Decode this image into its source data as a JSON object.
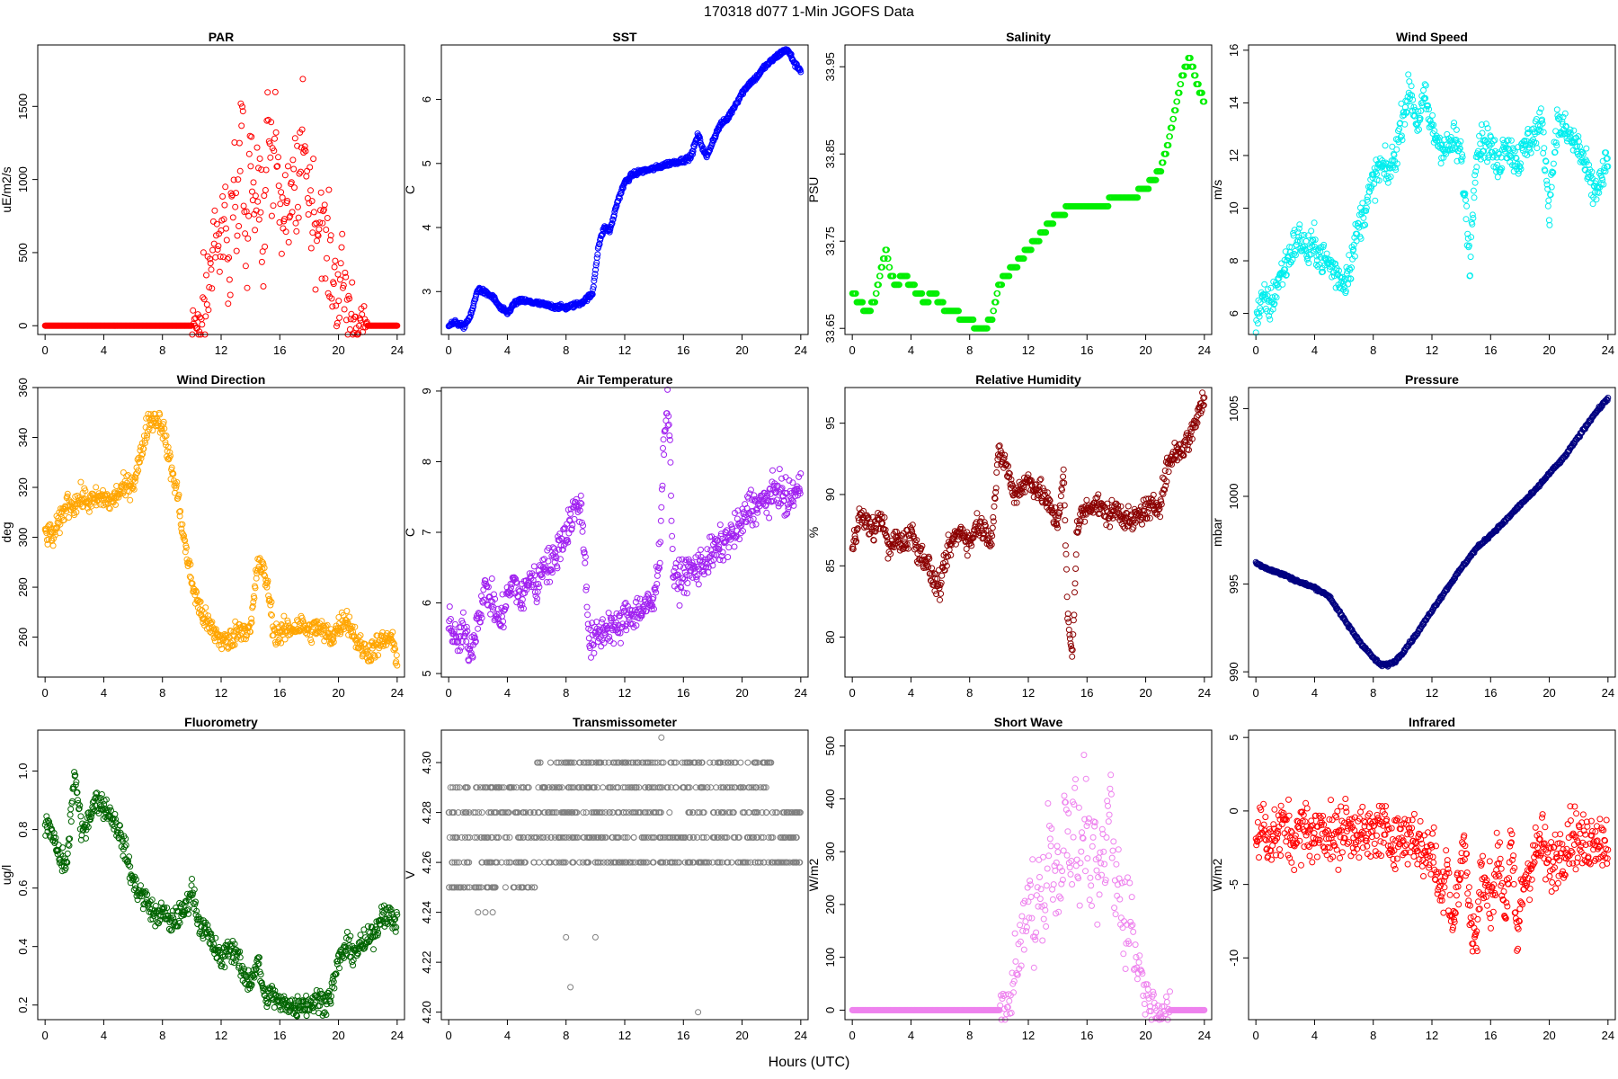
{
  "figure": {
    "title": "170318   d077   1-Min  JGOFS Data",
    "xlabel": "Hours (UTC)"
  },
  "chart_data": [
    {
      "type": "scatter",
      "title": "PAR",
      "ylabel": "uE/m2/s",
      "color": "#ff0000",
      "xlim": [
        -0.5,
        24.5
      ],
      "ylim": [
        -60,
        1920
      ],
      "yticks": [
        0,
        500,
        1000,
        1500
      ],
      "ytick_labels": [
        "0",
        "500",
        "1000",
        "1500"
      ],
      "x": [
        0,
        2,
        4,
        6,
        8,
        9,
        10,
        10.5,
        11,
        11.3,
        11.6,
        11.9,
        12.2,
        12.5,
        12.8,
        13.1,
        13.4,
        13.7,
        14,
        14.3,
        14.6,
        14.9,
        15.2,
        15.5,
        15.8,
        16.1,
        16.4,
        16.7,
        17,
        17.3,
        17.6,
        17.9,
        18.2,
        18.5,
        18.8,
        19.1,
        19.4,
        19.7,
        20,
        20.3,
        20.6,
        20.9,
        21.2,
        21.5,
        22,
        23,
        24
      ],
      "y": [
        0,
        0,
        0,
        0,
        0,
        0,
        2,
        20,
        90,
        380,
        700,
        420,
        850,
        340,
        1020,
        620,
        1500,
        420,
        1300,
        760,
        980,
        560,
        1700,
        860,
        1320,
        720,
        820,
        650,
        1080,
        760,
        1500,
        920,
        880,
        640,
        820,
        520,
        460,
        300,
        260,
        320,
        120,
        60,
        25,
        10,
        2,
        0,
        0
      ]
    },
    {
      "type": "scatter",
      "title": "SST",
      "ylabel": "C",
      "color": "#0000ff",
      "xlim": [
        -0.5,
        24.5
      ],
      "ylim": [
        2.33,
        6.85
      ],
      "yticks": [
        3,
        4,
        5,
        6
      ],
      "ytick_labels": [
        "3",
        "4",
        "5",
        "6"
      ],
      "x": [
        0,
        0.5,
        1,
        1.5,
        2,
        2.5,
        3,
        3.5,
        4,
        4.5,
        5,
        6,
        7,
        8,
        9,
        9.8,
        10.2,
        10.6,
        11,
        11.5,
        12,
        12.5,
        13,
        14,
        15,
        16,
        16.5,
        17,
        17.3,
        17.6,
        18,
        18.5,
        19,
        19.5,
        20,
        20.5,
        21,
        21.5,
        22,
        22.5,
        23,
        23.3,
        23.6,
        24
      ],
      "y": [
        2.48,
        2.52,
        2.45,
        2.62,
        3.05,
        2.98,
        2.92,
        2.75,
        2.66,
        2.82,
        2.86,
        2.82,
        2.77,
        2.75,
        2.82,
        2.96,
        3.7,
        4.0,
        3.95,
        4.4,
        4.7,
        4.82,
        4.87,
        4.92,
        5.0,
        5.05,
        5.1,
        5.45,
        5.25,
        5.1,
        5.35,
        5.6,
        5.7,
        5.9,
        6.1,
        6.25,
        6.35,
        6.5,
        6.6,
        6.7,
        6.78,
        6.7,
        6.55,
        6.45
      ]
    },
    {
      "type": "scatter",
      "title": "Salinity",
      "ylabel": "PSU",
      "color": "#00ee00",
      "xlim": [
        -0.5,
        24.5
      ],
      "ylim": [
        33.643,
        33.975
      ],
      "yticks": [
        33.65,
        33.75,
        33.85,
        33.95
      ],
      "ytick_labels": [
        "33.65",
        "33.75",
        "33.85",
        "33.95"
      ],
      "x": [
        0,
        0.5,
        1,
        1.5,
        2,
        2.3,
        2.6,
        3,
        3.5,
        4,
        4.5,
        5,
        5.5,
        6,
        6.5,
        7,
        7.5,
        8,
        8.5,
        9,
        9.5,
        10,
        10.5,
        11,
        11.5,
        12,
        12.5,
        13,
        13.5,
        14,
        15,
        16,
        17,
        18,
        19,
        20,
        20.5,
        21,
        21.5,
        22,
        22.5,
        23,
        23.5,
        24
      ],
      "y": [
        33.69,
        33.68,
        33.67,
        33.68,
        33.72,
        33.74,
        33.71,
        33.7,
        33.71,
        33.7,
        33.69,
        33.68,
        33.69,
        33.68,
        33.67,
        33.67,
        33.66,
        33.66,
        33.65,
        33.65,
        33.66,
        33.7,
        33.71,
        33.72,
        33.73,
        33.74,
        33.75,
        33.76,
        33.77,
        33.78,
        33.79,
        33.79,
        33.79,
        33.8,
        33.8,
        33.81,
        33.82,
        33.83,
        33.86,
        33.9,
        33.94,
        33.96,
        33.93,
        33.91
      ]
    },
    {
      "type": "scatter",
      "title": "Wind Speed",
      "ylabel": "m/s",
      "color": "#00eeee",
      "xlim": [
        -0.5,
        24.5
      ],
      "ylim": [
        5.2,
        16.2
      ],
      "yticks": [
        6,
        8,
        10,
        12,
        14,
        16
      ],
      "ytick_labels": [
        "6",
        "8",
        "10",
        "12",
        "14",
        "16"
      ],
      "x": [
        0,
        0.5,
        1,
        1.5,
        2,
        2.5,
        3,
        3.5,
        4,
        4.5,
        5,
        5.5,
        6,
        6.5,
        7,
        7.5,
        8,
        8.5,
        9,
        9.5,
        10,
        10.5,
        11,
        11.5,
        12,
        12.5,
        13,
        13.5,
        14,
        14.3,
        14.6,
        15,
        15.5,
        16,
        16.5,
        17,
        17.5,
        18,
        18.5,
        19,
        19.5,
        20,
        20.5,
        21,
        21.5,
        22,
        22.5,
        23,
        23.5,
        24
      ],
      "y": [
        5.8,
        6.5,
        6.3,
        7.2,
        7.8,
        8.5,
        8.9,
        8.3,
        8.6,
        8.1,
        7.9,
        7.5,
        7.2,
        8.0,
        9.3,
        10.1,
        11.0,
        11.6,
        11.3,
        12.0,
        13.5,
        14.5,
        13.2,
        14.2,
        13.0,
        12.5,
        12.2,
        12.6,
        12.0,
        10.0,
        7.9,
        12.2,
        12.6,
        12.4,
        11.5,
        12.6,
        12.0,
        11.8,
        12.5,
        12.8,
        13.2,
        10.0,
        13.2,
        13.0,
        12.6,
        12.3,
        11.5,
        10.6,
        11.0,
        11.8
      ]
    },
    {
      "type": "scatter",
      "title": "Wind Direction",
      "ylabel": "deg",
      "color": "#ffa500",
      "xlim": [
        -0.5,
        24.5
      ],
      "ylim": [
        244,
        360
      ],
      "yticks": [
        260,
        280,
        300,
        320,
        340,
        360
      ],
      "ytick_labels": [
        "260",
        "280",
        "300",
        "320",
        "340",
        "360"
      ],
      "x": [
        0,
        0.5,
        1,
        1.5,
        2,
        2.5,
        3,
        3.5,
        4,
        4.5,
        5,
        5.5,
        6,
        6.5,
        7,
        7.5,
        8,
        8.5,
        9,
        9.5,
        10,
        10.5,
        11,
        11.5,
        12,
        12.5,
        13,
        13.5,
        14,
        14.5,
        15,
        15.3,
        15.6,
        16,
        16.5,
        17,
        17.5,
        18,
        18.5,
        19,
        19.5,
        20,
        20.5,
        21,
        21.5,
        22,
        22.5,
        23,
        23.5,
        24
      ],
      "y": [
        302,
        300,
        306,
        314,
        313,
        316,
        314,
        315,
        316,
        314,
        318,
        320,
        322,
        332,
        346,
        348,
        345,
        330,
        318,
        298,
        282,
        272,
        266,
        262,
        259,
        258,
        262,
        264,
        262,
        290,
        285,
        275,
        262,
        261,
        263,
        264,
        265,
        262,
        264,
        262,
        260,
        264,
        268,
        262,
        256,
        254,
        256,
        258,
        260,
        252
      ]
    },
    {
      "type": "scatter",
      "title": "Air Temperature",
      "ylabel": "C",
      "color": "#a020f0",
      "xlim": [
        -0.5,
        24.5
      ],
      "ylim": [
        4.95,
        9.05
      ],
      "yticks": [
        5,
        6,
        7,
        8,
        9
      ],
      "ytick_labels": [
        "5",
        "6",
        "7",
        "8",
        "9"
      ],
      "x": [
        0,
        0.5,
        1,
        1.5,
        2,
        2.5,
        3,
        3.5,
        4,
        4.5,
        5,
        5.5,
        6,
        6.5,
        7,
        7.5,
        8,
        8.5,
        9,
        9.3,
        9.6,
        10,
        10.5,
        11,
        11.5,
        12,
        13,
        14,
        14.4,
        14.7,
        15,
        15.3,
        15.6,
        16,
        17,
        18,
        19,
        20,
        20.5,
        21,
        21.5,
        22,
        22.5,
        23,
        23.5,
        24
      ],
      "y": [
        5.8,
        5.4,
        5.6,
        5.3,
        5.8,
        6.2,
        6.0,
        5.7,
        6.1,
        6.3,
        6.0,
        6.4,
        6.2,
        6.6,
        6.5,
        6.8,
        7.0,
        7.3,
        7.4,
        6.6,
        5.4,
        5.5,
        5.6,
        5.7,
        5.6,
        5.8,
        5.9,
        6.0,
        6.8,
        8.5,
        8.8,
        6.4,
        6.3,
        6.4,
        6.5,
        6.7,
        6.9,
        7.1,
        7.4,
        7.35,
        7.45,
        7.5,
        7.65,
        7.4,
        7.55,
        7.6
      ]
    },
    {
      "type": "scatter",
      "title": "Relative Humidity",
      "ylabel": "%",
      "color": "#8b0000",
      "xlim": [
        -0.5,
        24.5
      ],
      "ylim": [
        77.2,
        97.5
      ],
      "yticks": [
        80,
        85,
        90,
        95
      ],
      "ytick_labels": [
        "80",
        "85",
        "90",
        "95"
      ],
      "x": [
        0,
        0.5,
        1,
        1.5,
        2,
        2.5,
        3,
        3.5,
        4,
        4.5,
        5,
        5.5,
        6,
        6.5,
        7,
        7.5,
        8,
        8.5,
        9,
        9.5,
        10,
        10.5,
        11,
        11.5,
        12,
        12.5,
        13,
        13.5,
        14,
        14.4,
        14.7,
        15,
        15.3,
        15.6,
        16,
        16.5,
        17,
        17.5,
        18,
        18.5,
        19,
        19.5,
        20,
        20.5,
        21,
        21.5,
        22,
        22.5,
        23,
        23.5,
        24
      ],
      "y": [
        86.5,
        88.5,
        88,
        87.5,
        88.5,
        86,
        87,
        86.5,
        87.5,
        86,
        85.5,
        84,
        83.5,
        86,
        87,
        87.5,
        86.5,
        88,
        87.5,
        87,
        93,
        92,
        90,
        90.5,
        91,
        90.5,
        90,
        89,
        88,
        91.5,
        81,
        78.5,
        87.5,
        88.5,
        89,
        89.5,
        89,
        88.5,
        89,
        88.5,
        88,
        88.5,
        89,
        89,
        89.5,
        92,
        93,
        93.2,
        94,
        95.5,
        96.8
      ]
    },
    {
      "type": "line",
      "title": "Pressure",
      "ylabel": "mbar",
      "color": "#000080",
      "xlim": [
        -0.5,
        24.5
      ],
      "ylim": [
        989.7,
        1006.2
      ],
      "yticks": [
        990,
        995,
        1000,
        1005
      ],
      "ytick_labels": [
        "990",
        "995",
        "1000",
        "1005"
      ],
      "x": [
        0,
        1,
        2,
        3,
        4,
        5,
        6,
        7,
        8,
        8.5,
        9,
        9.5,
        10,
        11,
        12,
        13,
        14,
        15,
        16,
        17,
        18,
        19,
        20,
        21,
        22,
        23,
        24
      ],
      "y": [
        996.2,
        995.8,
        995.5,
        995.1,
        994.8,
        994.3,
        993.0,
        991.8,
        990.8,
        990.4,
        990.4,
        990.6,
        991.1,
        992.2,
        993.5,
        994.7,
        995.9,
        997.0,
        997.8,
        998.6,
        999.5,
        1000.3,
        1001.3,
        1002.2,
        1003.4,
        1004.6,
        1005.6
      ]
    },
    {
      "type": "scatter",
      "title": "Fluorometry",
      "ylabel": "ug/l",
      "color": "#006400",
      "xlim": [
        -0.5,
        24.5
      ],
      "ylim": [
        0.15,
        1.14
      ],
      "yticks": [
        0.2,
        0.4,
        0.6,
        0.8,
        1.0
      ],
      "ytick_labels": [
        "0.2",
        "0.4",
        "0.6",
        "0.8",
        "1.0"
      ],
      "x": [
        0,
        0.5,
        1,
        1.5,
        2,
        2.5,
        3,
        3.5,
        4,
        4.5,
        5,
        5.5,
        6,
        6.5,
        7,
        7.5,
        8,
        8.5,
        9,
        9.5,
        10,
        10.5,
        11,
        11.5,
        12,
        12.5,
        13,
        13.5,
        14,
        14.5,
        15,
        15.5,
        16,
        16.5,
        17,
        17.5,
        18,
        18.5,
        19,
        19.5,
        20,
        20.5,
        21,
        21.5,
        22,
        22.5,
        23,
        23.5,
        24
      ],
      "y": [
        0.82,
        0.78,
        0.7,
        0.68,
        1.0,
        0.78,
        0.85,
        0.9,
        0.88,
        0.85,
        0.8,
        0.72,
        0.62,
        0.58,
        0.55,
        0.5,
        0.52,
        0.48,
        0.5,
        0.52,
        0.6,
        0.48,
        0.45,
        0.4,
        0.35,
        0.4,
        0.38,
        0.3,
        0.28,
        0.35,
        0.22,
        0.24,
        0.2,
        0.21,
        0.19,
        0.21,
        0.2,
        0.22,
        0.21,
        0.24,
        0.35,
        0.4,
        0.38,
        0.4,
        0.42,
        0.45,
        0.52,
        0.5,
        0.48
      ]
    },
    {
      "type": "scatter",
      "title": "Transmissometer",
      "ylabel": "V",
      "color": "#808080",
      "xlim": [
        -0.5,
        24.5
      ],
      "ylim": [
        4.197,
        4.313
      ],
      "yticks": [
        4.2,
        4.22,
        4.24,
        4.26,
        4.28,
        4.3
      ],
      "ytick_labels": [
        "4.20",
        "4.22",
        "4.24",
        "4.26",
        "4.28",
        "4.30"
      ],
      "levels": [
        4.25,
        4.26,
        4.27,
        4.28,
        4.29,
        4.3
      ],
      "outliers_x": [
        2,
        2.5,
        3,
        8,
        8.3,
        10,
        14.5,
        17
      ],
      "outliers_y": [
        4.24,
        4.24,
        4.24,
        4.23,
        4.21,
        4.23,
        4.31,
        4.2
      ]
    },
    {
      "type": "scatter",
      "title": "Short Wave",
      "ylabel": "W/m2",
      "color": "#ee82ee",
      "xlim": [
        -0.5,
        24.5
      ],
      "ylim": [
        -18,
        530
      ],
      "yticks": [
        0,
        100,
        200,
        300,
        400,
        500
      ],
      "ytick_labels": [
        "0",
        "100",
        "200",
        "300",
        "400",
        "500"
      ],
      "x": [
        0,
        2,
        4,
        6,
        8,
        9,
        10,
        10.5,
        11,
        11.3,
        11.6,
        11.9,
        12.2,
        12.5,
        12.8,
        13.1,
        13.4,
        13.7,
        14,
        14.3,
        14.6,
        14.9,
        15.2,
        15.5,
        15.8,
        16.1,
        16.4,
        16.7,
        17,
        17.3,
        17.6,
        17.9,
        18.2,
        18.5,
        18.8,
        19.1,
        19.4,
        19.7,
        20,
        20.5,
        21,
        22,
        23,
        24
      ],
      "y": [
        0,
        0,
        0,
        0,
        0,
        0,
        2,
        10,
        40,
        90,
        140,
        180,
        220,
        150,
        260,
        190,
        350,
        220,
        300,
        240,
        430,
        280,
        360,
        250,
        400,
        290,
        270,
        240,
        260,
        300,
        410,
        220,
        240,
        170,
        210,
        140,
        100,
        60,
        30,
        12,
        5,
        2,
        0,
        0
      ]
    },
    {
      "type": "scatter",
      "title": "Infrared",
      "ylabel": "W/m2",
      "color": "#ff0000",
      "xlim": [
        -0.5,
        24.5
      ],
      "ylim": [
        -14.2,
        5.5
      ],
      "yticks": [
        -10,
        -5,
        0,
        5
      ],
      "ytick_labels": [
        "-10",
        "-5",
        "0",
        "5"
      ],
      "x": [
        0,
        0.5,
        1,
        1.5,
        2,
        2.5,
        3,
        3.5,
        4,
        4.5,
        5,
        5.5,
        6,
        6.5,
        7,
        7.5,
        8,
        8.5,
        9,
        9.5,
        10,
        10.5,
        11,
        11.5,
        12,
        12.3,
        12.6,
        13,
        13.4,
        13.8,
        14.2,
        14.6,
        15,
        15.4,
        15.8,
        16.2,
        16.6,
        17,
        17.4,
        17.8,
        18.2,
        18.6,
        19,
        19.5,
        20,
        20.5,
        21,
        21.5,
        22,
        22.5,
        23,
        23.5,
        24
      ],
      "y": [
        -2,
        -1,
        -2,
        -1.5,
        -1,
        -2,
        -1.5,
        -1,
        -2,
        -1,
        -1.5,
        -2,
        -1,
        -1.5,
        -1,
        -2,
        -1.5,
        -1,
        -2,
        -1.5,
        -2,
        -1.5,
        -2,
        -3,
        -2.5,
        -4,
        -6,
        -3,
        -8,
        -5,
        -2,
        -7,
        -9,
        -4,
        -6,
        -5,
        -3,
        -7,
        -2,
        -9,
        -5,
        -4,
        -3,
        -2,
        -4,
        -3,
        -2.5,
        -1.5,
        -2,
        -2.5,
        -1.5,
        -2,
        -2
      ]
    }
  ]
}
